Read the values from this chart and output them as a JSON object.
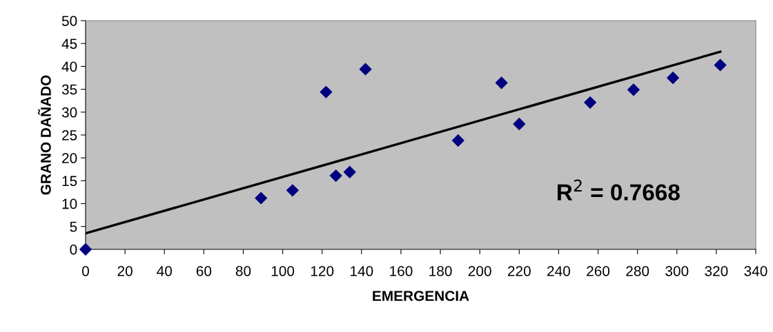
{
  "chart_data": {
    "type": "scatter",
    "xlabel": "EMERGENCIA",
    "ylabel": "GRANO DAÑADO",
    "annotations": [
      "R$^{2}$ = 0.7668"
    ],
    "xlim": [
      0,
      340
    ],
    "xticks": [
      0,
      20,
      40,
      60,
      80,
      100,
      120,
      140,
      160,
      180,
      200,
      220,
      240,
      260,
      280,
      300,
      320,
      340
    ],
    "ylim": [
      0,
      50
    ],
    "yticks": [
      0,
      5,
      10,
      15,
      20,
      25,
      30,
      35,
      40,
      45,
      50
    ],
    "grid": false,
    "legend": false,
    "series": [
      {
        "marker": "diamond",
        "color": "#000080",
        "x": [
          0,
          89,
          105,
          122,
          127,
          134,
          142,
          189,
          211,
          220,
          256,
          278,
          298,
          322
        ],
        "values": [
          0,
          11.2,
          12.9,
          34.4,
          16.1,
          16.9,
          39.4,
          23.8,
          36.4,
          27.4,
          32.1,
          34.9,
          37.5,
          40.3
        ]
      },
      {
        "type": "line",
        "color": "#000000",
        "line_style": "solid",
        "x": [
          0,
          322
        ],
        "values": [
          3.5,
          43.2
        ]
      }
    ]
  }
}
